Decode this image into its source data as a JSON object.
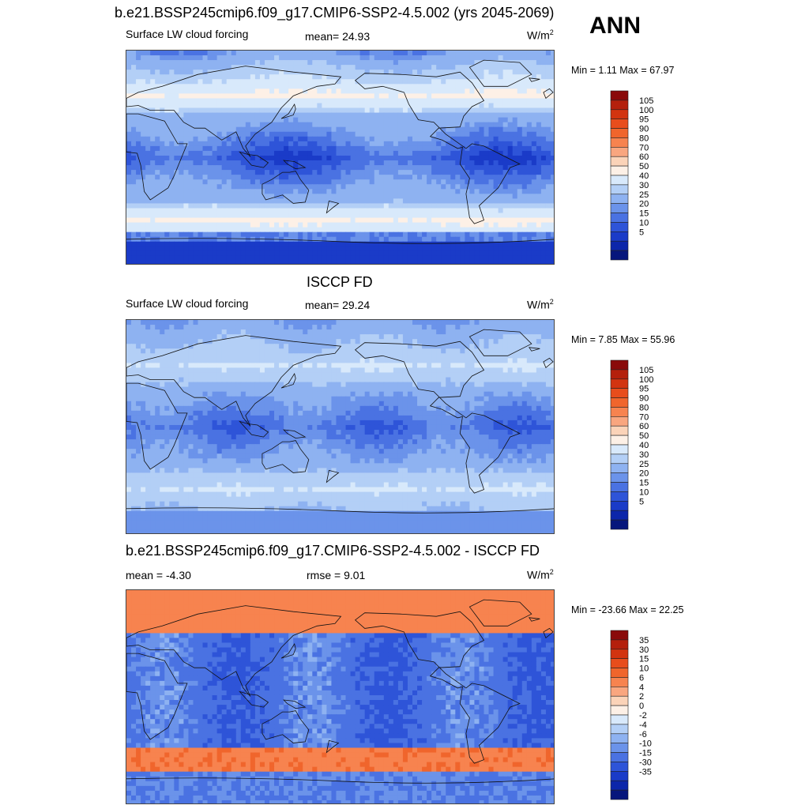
{
  "header": {
    "title": "b.e21.BSSP245cmip6.f09_g17.CMIP6-SSP2-4.5.002 (yrs 2045-2069)",
    "season": "ANN"
  },
  "panels": [
    {
      "id": "model",
      "title": "",
      "left_label": "Surface LW cloud forcing",
      "center_label": "mean=  24.93",
      "units": "W/m",
      "units_exp": "2",
      "minmax": "Min =   1.11 Max =  67.97",
      "colorbar_labels": [
        "105",
        "100",
        "95",
        "90",
        "80",
        "70",
        "60",
        "50",
        "40",
        "30",
        "25",
        "20",
        "15",
        "10",
        "5"
      ],
      "colorbar_colors": [
        "#8a0a0a",
        "#b4200c",
        "#d23410",
        "#e84d1c",
        "#f0652c",
        "#f7834f",
        "#f9a67f",
        "#fbd3b8",
        "#fdf0e6",
        "#d8e9fb",
        "#b3cff6",
        "#8eb2f1",
        "#6b93ea",
        "#4a72e2",
        "#2e54d8",
        "#1a3bc8",
        "#0c26aa",
        "#06167c"
      ]
    },
    {
      "id": "obs",
      "title": "ISCCP FD",
      "left_label": "Surface LW cloud forcing",
      "center_label": "mean=  29.24",
      "units": "W/m",
      "units_exp": "2",
      "minmax": "Min =   7.85 Max =  55.96",
      "colorbar_labels": [
        "105",
        "100",
        "95",
        "90",
        "80",
        "70",
        "60",
        "50",
        "40",
        "30",
        "25",
        "20",
        "15",
        "10",
        "5"
      ],
      "colorbar_colors": [
        "#8a0a0a",
        "#b4200c",
        "#d23410",
        "#e84d1c",
        "#f0652c",
        "#f7834f",
        "#f9a67f",
        "#fbd3b8",
        "#fdf0e6",
        "#d8e9fb",
        "#b3cff6",
        "#8eb2f1",
        "#6b93ea",
        "#4a72e2",
        "#2e54d8",
        "#1a3bc8",
        "#0c26aa",
        "#06167c"
      ]
    },
    {
      "id": "diff",
      "title": "b.e21.BSSP245cmip6.f09_g17.CMIP6-SSP2-4.5.002 - ISCCP FD",
      "left_label": "mean =  -4.30",
      "center_label": "rmse =   9.01",
      "units": "W/m",
      "units_exp": "2",
      "minmax": "Min = -23.66 Max =  22.25",
      "colorbar_labels": [
        "35",
        "30",
        "15",
        "10",
        "6",
        "4",
        "2",
        "0",
        "-2",
        "-4",
        "-6",
        "-10",
        "-15",
        "-30",
        "-35"
      ],
      "colorbar_colors": [
        "#8a0a0a",
        "#b4200c",
        "#d23410",
        "#e84d1c",
        "#f0652c",
        "#f7834f",
        "#f9a67f",
        "#fbd3b8",
        "#fdf0e6",
        "#d8e9fb",
        "#b3cff6",
        "#8eb2f1",
        "#6b93ea",
        "#4a72e2",
        "#2e54d8",
        "#1a3bc8",
        "#0c26aa",
        "#06167c"
      ]
    }
  ],
  "chart_data": [
    {
      "type": "heatmap",
      "title": "b.e21.BSSP245cmip6.f09_g17.CMIP6-SSP2-4.5.002 (yrs 2045-2069)",
      "variable": "Surface LW cloud forcing",
      "units": "W/m2",
      "mean": 24.93,
      "min": 1.11,
      "max": 67.97,
      "levels": [
        5,
        10,
        15,
        20,
        25,
        30,
        40,
        50,
        60,
        70,
        80,
        90,
        95,
        100,
        105
      ]
    },
    {
      "type": "heatmap",
      "title": "ISCCP FD",
      "variable": "Surface LW cloud forcing",
      "units": "W/m2",
      "mean": 29.24,
      "min": 7.85,
      "max": 55.96,
      "levels": [
        5,
        10,
        15,
        20,
        25,
        30,
        40,
        50,
        60,
        70,
        80,
        90,
        95,
        100,
        105
      ]
    },
    {
      "type": "heatmap",
      "title": "b.e21.BSSP245cmip6.f09_g17.CMIP6-SSP2-4.5.002 - ISCCP FD",
      "units": "W/m2",
      "mean": -4.3,
      "rmse": 9.01,
      "min": -23.66,
      "max": 22.25,
      "levels": [
        -35,
        -30,
        -15,
        -10,
        -6,
        -4,
        -2,
        0,
        2,
        4,
        6,
        10,
        15,
        30,
        35
      ]
    }
  ]
}
